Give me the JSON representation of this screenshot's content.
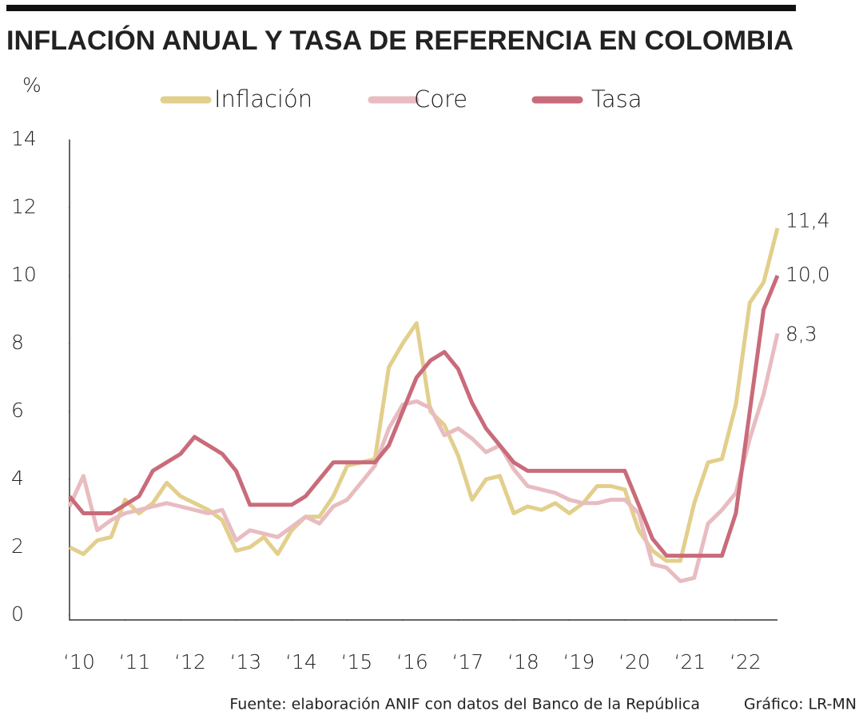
{
  "chart_data": {
    "type": "line",
    "title": "INFLACIÓN ANUAL Y TASA DE REFERENCIA EN COLOMBIA",
    "y_unit": "%",
    "source": "Fuente: elaboración ANIF con datos del Banco de la República",
    "credit": "Gráfico: LR-MN",
    "x": [
      2010,
      2010.25,
      2010.5,
      2010.75,
      2011,
      2011.25,
      2011.5,
      2011.75,
      2012,
      2012.25,
      2012.5,
      2012.75,
      2013,
      2013.25,
      2013.5,
      2013.75,
      2014,
      2014.25,
      2014.5,
      2014.75,
      2015,
      2015.25,
      2015.5,
      2015.75,
      2016,
      2016.25,
      2016.5,
      2016.75,
      2017,
      2017.25,
      2017.5,
      2017.75,
      2018,
      2018.25,
      2018.5,
      2018.75,
      2019,
      2019.25,
      2019.5,
      2019.75,
      2020,
      2020.25,
      2020.5,
      2020.75,
      2021,
      2021.25,
      2021.5,
      2021.75,
      2022,
      2022.25,
      2022.5,
      2022.75
    ],
    "series": [
      {
        "name": "Inflación",
        "color": "#e2cf8c",
        "values": [
          2.0,
          1.8,
          2.2,
          2.3,
          3.4,
          3.0,
          3.3,
          3.9,
          3.5,
          3.3,
          3.1,
          2.8,
          1.9,
          2.0,
          2.3,
          1.8,
          2.5,
          2.9,
          2.9,
          3.5,
          4.4,
          4.5,
          4.6,
          7.3,
          8.0,
          8.6,
          6.0,
          5.6,
          4.7,
          3.4,
          4.0,
          4.1,
          3.0,
          3.2,
          3.1,
          3.3,
          3.0,
          3.3,
          3.8,
          3.8,
          3.7,
          2.5,
          1.9,
          1.6,
          1.6,
          3.3,
          4.5,
          4.6,
          6.2,
          9.2,
          9.8,
          11.4
        ],
        "value_labels": [
          null,
          null,
          null,
          null,
          null,
          null,
          null,
          null,
          null,
          null,
          null,
          null,
          null,
          null,
          null,
          null,
          null,
          null,
          null,
          null,
          null,
          null,
          null,
          null,
          null,
          null,
          null,
          null,
          null,
          null,
          null,
          null,
          null,
          null,
          null,
          null,
          null,
          null,
          null,
          null,
          null,
          null,
          null,
          null,
          null,
          null,
          null,
          null,
          null,
          null,
          null,
          "11,4"
        ]
      },
      {
        "name": "Core",
        "color": "#e8bcc0",
        "values": [
          3.2,
          4.1,
          2.5,
          2.8,
          3.0,
          3.1,
          3.2,
          3.3,
          3.2,
          3.1,
          3.0,
          3.1,
          2.2,
          2.5,
          2.4,
          2.3,
          2.6,
          2.9,
          2.7,
          3.2,
          3.4,
          3.9,
          4.4,
          5.5,
          6.2,
          6.3,
          6.1,
          5.3,
          5.5,
          5.2,
          4.8,
          5.0,
          4.3,
          3.8,
          3.7,
          3.6,
          3.4,
          3.3,
          3.3,
          3.4,
          3.4,
          3.0,
          1.5,
          1.4,
          1.0,
          1.1,
          2.7,
          3.1,
          3.6,
          5.2,
          6.5,
          8.3
        ],
        "value_labels": [
          null,
          null,
          null,
          null,
          null,
          null,
          null,
          null,
          null,
          null,
          null,
          null,
          null,
          null,
          null,
          null,
          null,
          null,
          null,
          null,
          null,
          null,
          null,
          null,
          null,
          null,
          null,
          null,
          null,
          null,
          null,
          null,
          null,
          null,
          null,
          null,
          null,
          null,
          null,
          null,
          null,
          null,
          null,
          null,
          null,
          null,
          null,
          null,
          null,
          null,
          null,
          "8,3"
        ]
      },
      {
        "name": "Tasa",
        "color": "#c96b7a",
        "values": [
          3.5,
          3.0,
          3.0,
          3.0,
          3.25,
          3.5,
          4.25,
          4.5,
          4.75,
          5.25,
          5.0,
          4.75,
          4.25,
          3.25,
          3.25,
          3.25,
          3.25,
          3.5,
          4.0,
          4.5,
          4.5,
          4.5,
          4.5,
          5.0,
          6.0,
          7.0,
          7.5,
          7.75,
          7.25,
          6.25,
          5.5,
          5.0,
          4.5,
          4.25,
          4.25,
          4.25,
          4.25,
          4.25,
          4.25,
          4.25,
          4.25,
          3.25,
          2.25,
          1.75,
          1.75,
          1.75,
          1.75,
          1.75,
          3.0,
          6.0,
          9.0,
          10.0
        ],
        "value_labels": [
          null,
          null,
          null,
          null,
          null,
          null,
          null,
          null,
          null,
          null,
          null,
          null,
          null,
          null,
          null,
          null,
          null,
          null,
          null,
          null,
          null,
          null,
          null,
          null,
          null,
          null,
          null,
          null,
          null,
          null,
          null,
          null,
          null,
          null,
          null,
          null,
          null,
          null,
          null,
          null,
          null,
          null,
          null,
          null,
          null,
          null,
          null,
          null,
          null,
          null,
          null,
          "10,0"
        ]
      }
    ],
    "xlim": [
      2010,
      2022.75
    ],
    "xticks": [
      {
        "value": 2010,
        "label": "‘10"
      },
      {
        "value": 2011,
        "label": "‘11"
      },
      {
        "value": 2012,
        "label": "‘12"
      },
      {
        "value": 2013,
        "label": "‘13"
      },
      {
        "value": 2014,
        "label": "‘14"
      },
      {
        "value": 2015,
        "label": "‘15"
      },
      {
        "value": 2016,
        "label": "‘16"
      },
      {
        "value": 2017,
        "label": "‘17"
      },
      {
        "value": 2018,
        "label": "‘18"
      },
      {
        "value": 2019,
        "label": "‘19"
      },
      {
        "value": 2020,
        "label": "‘20"
      },
      {
        "value": 2021,
        "label": "‘21"
      },
      {
        "value": 2022,
        "label": "‘22"
      }
    ],
    "ylim": [
      0,
      14
    ],
    "yticks": [
      0,
      2,
      4,
      6,
      8,
      10,
      12,
      14
    ],
    "grid": false
  }
}
